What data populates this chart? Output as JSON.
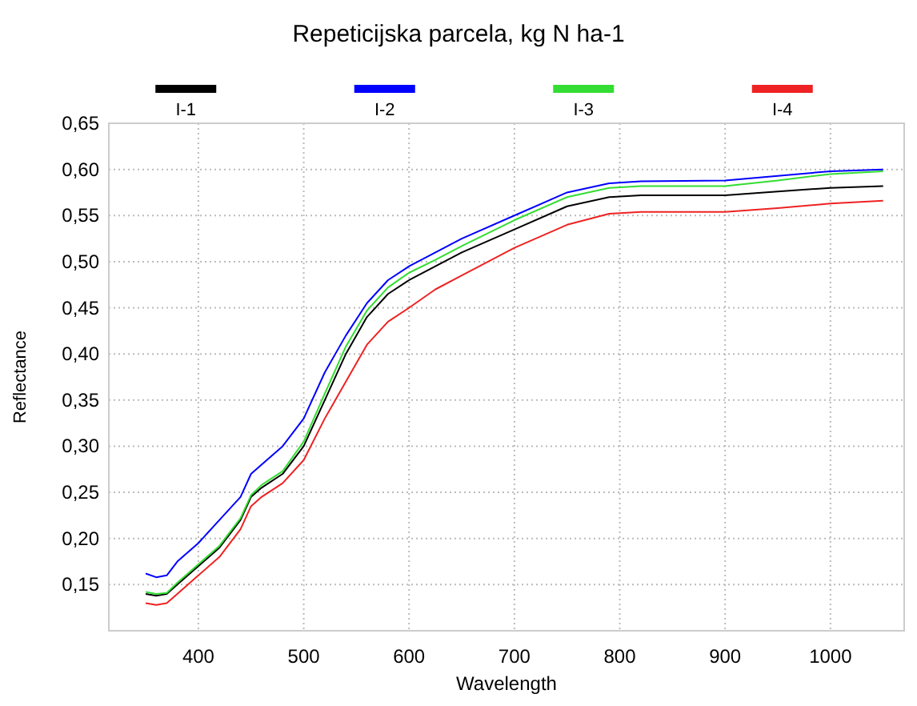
{
  "chart_data": {
    "type": "line",
    "title": "Repeticijska parcela, kg N ha-1",
    "xlabel": "Wavelength",
    "ylabel": "Reflectance",
    "xlim": [
      315,
      1070
    ],
    "ylim": [
      0.1,
      0.65
    ],
    "xticks": [
      400,
      500,
      600,
      700,
      800,
      900,
      1000
    ],
    "yticks": [
      {
        "value": 0.15,
        "label": "0,15"
      },
      {
        "value": 0.2,
        "label": "0,20"
      },
      {
        "value": 0.25,
        "label": "0,25"
      },
      {
        "value": 0.3,
        "label": "0,30"
      },
      {
        "value": 0.35,
        "label": "0,35"
      },
      {
        "value": 0.4,
        "label": "0,40"
      },
      {
        "value": 0.45,
        "label": "0,45"
      },
      {
        "value": 0.5,
        "label": "0,50"
      },
      {
        "value": 0.55,
        "label": "0,55"
      },
      {
        "value": 0.6,
        "label": "0,60"
      },
      {
        "value": 0.65,
        "label": "0,65"
      }
    ],
    "grid": true,
    "legend": "top",
    "marker": "none",
    "line_style": "solid",
    "x": [
      350,
      360,
      370,
      380,
      400,
      420,
      440,
      450,
      460,
      480,
      500,
      520,
      540,
      560,
      580,
      600,
      625,
      650,
      700,
      750,
      790,
      820,
      900,
      950,
      1000,
      1050
    ],
    "series": [
      {
        "name": "I-1",
        "color": "#000000",
        "values": [
          0.14,
          0.138,
          0.14,
          0.15,
          0.17,
          0.19,
          0.22,
          0.245,
          0.255,
          0.27,
          0.3,
          0.35,
          0.4,
          0.44,
          0.465,
          0.48,
          0.495,
          0.51,
          0.535,
          0.56,
          0.57,
          0.572,
          0.572,
          0.576,
          0.58,
          0.582
        ]
      },
      {
        "name": "I-2",
        "color": "#0000ff",
        "values": [
          0.162,
          0.158,
          0.16,
          0.175,
          0.195,
          0.22,
          0.245,
          0.27,
          0.28,
          0.3,
          0.33,
          0.38,
          0.42,
          0.455,
          0.48,
          0.495,
          0.51,
          0.525,
          0.55,
          0.575,
          0.585,
          0.587,
          0.588,
          0.593,
          0.598,
          0.6
        ]
      },
      {
        "name": "I-3",
        "color": "#33dd33",
        "values": [
          0.142,
          0.14,
          0.141,
          0.152,
          0.172,
          0.192,
          0.222,
          0.247,
          0.258,
          0.273,
          0.305,
          0.357,
          0.408,
          0.447,
          0.472,
          0.488,
          0.502,
          0.517,
          0.545,
          0.57,
          0.58,
          0.582,
          0.582,
          0.588,
          0.595,
          0.598
        ]
      },
      {
        "name": "I-4",
        "color": "#ee2222",
        "values": [
          0.13,
          0.128,
          0.13,
          0.14,
          0.16,
          0.18,
          0.21,
          0.235,
          0.245,
          0.26,
          0.285,
          0.33,
          0.37,
          0.41,
          0.435,
          0.45,
          0.47,
          0.485,
          0.515,
          0.54,
          0.552,
          0.554,
          0.554,
          0.558,
          0.563,
          0.566
        ]
      }
    ]
  }
}
